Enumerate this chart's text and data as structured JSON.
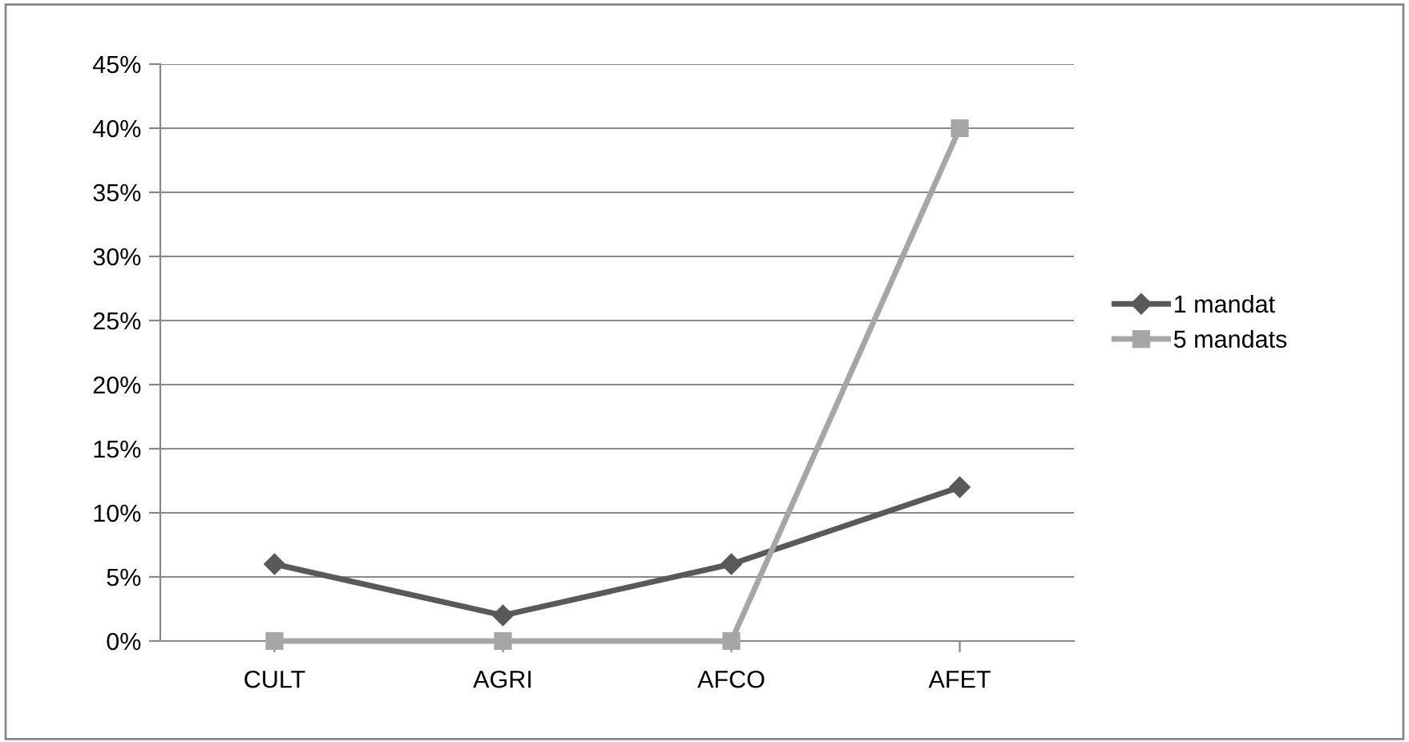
{
  "chart_data": {
    "type": "line",
    "categories": [
      "CULT",
      "AGRI",
      "AFCO",
      "AFET"
    ],
    "series": [
      {
        "name": "1 mandat",
        "color": "#595959",
        "marker": "diamond",
        "values": [
          6,
          2,
          6,
          12
        ]
      },
      {
        "name": "5 mandats",
        "color": "#a6a6a6",
        "marker": "square",
        "values": [
          0,
          0,
          0,
          40
        ]
      }
    ],
    "ylim": [
      0,
      45
    ],
    "yticks": [
      {
        "value": 0,
        "label": "0%"
      },
      {
        "value": 5,
        "label": "5%"
      },
      {
        "value": 10,
        "label": "10%"
      },
      {
        "value": 15,
        "label": "15%"
      },
      {
        "value": 20,
        "label": "20%"
      },
      {
        "value": 25,
        "label": "25%"
      },
      {
        "value": 30,
        "label": "30%"
      },
      {
        "value": 35,
        "label": "35%"
      },
      {
        "value": 40,
        "label": "40%"
      },
      {
        "value": 45,
        "label": "45%"
      }
    ],
    "grid": "y",
    "legend": "right",
    "line_style": "solid"
  }
}
